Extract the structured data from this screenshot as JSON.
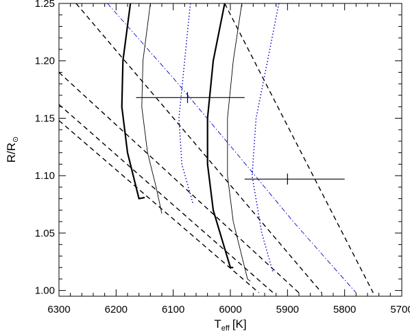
{
  "chart_data": {
    "type": "line",
    "title": "",
    "xlabel": {
      "main": "T",
      "sub": "eff",
      "unit": "[K]"
    },
    "ylabel": {
      "main": "R/R",
      "sub": "⊙"
    },
    "xlim": [
      6300,
      5700
    ],
    "ylim": [
      0.995,
      1.25
    ],
    "x_reversed": true,
    "grid": false,
    "legend": "none",
    "xticks": [
      6300,
      6200,
      6100,
      6000,
      5900,
      5800,
      5700
    ],
    "xtick_labels": [
      "6300",
      "6200",
      "6100",
      "6000",
      "5900",
      "5800",
      "5700"
    ],
    "yticks": [
      1.0,
      1.05,
      1.1,
      1.15,
      1.2,
      1.25
    ],
    "ytick_labels": [
      "1.00",
      "1.05",
      "1.10",
      "1.15",
      "1.20",
      "1.25"
    ],
    "series": [
      {
        "style": "thick-solid",
        "color": "#000000",
        "points": [
          [
            6175,
            1.25
          ],
          [
            6188,
            1.2
          ],
          [
            6190,
            1.16
          ],
          [
            6180,
            1.12
          ],
          [
            6160,
            1.08
          ],
          [
            6150,
            1.081
          ]
        ]
      },
      {
        "style": "thin-solid",
        "color": "#000000",
        "points": [
          [
            6140,
            1.25
          ],
          [
            6153,
            1.2
          ],
          [
            6155,
            1.16
          ],
          [
            6145,
            1.12
          ],
          [
            6130,
            1.09
          ],
          [
            6120,
            1.067
          ]
        ]
      },
      {
        "style": "thick-solid",
        "color": "#000000",
        "points": [
          [
            6010,
            1.25
          ],
          [
            6030,
            1.2
          ],
          [
            6040,
            1.15
          ],
          [
            6040,
            1.11
          ],
          [
            6030,
            1.07
          ],
          [
            6000,
            1.02
          ],
          [
            5995,
            1.02
          ]
        ]
      },
      {
        "style": "thin-solid",
        "color": "#000000",
        "points": [
          [
            5980,
            1.25
          ],
          [
            5995,
            1.2
          ],
          [
            6005,
            1.15
          ],
          [
            6005,
            1.1
          ],
          [
            5995,
            1.06
          ],
          [
            5970,
            1.01
          ],
          [
            5965,
            1.008
          ]
        ]
      },
      {
        "style": "dotted",
        "color": "#0000cc",
        "points": [
          [
            6070,
            1.25
          ],
          [
            6080,
            1.2
          ],
          [
            6090,
            1.15
          ],
          [
            6085,
            1.11
          ],
          [
            6065,
            1.075
          ]
        ]
      },
      {
        "style": "dotted",
        "color": "#0000cc",
        "points": [
          [
            5915,
            1.25
          ],
          [
            5935,
            1.2
          ],
          [
            5955,
            1.15
          ],
          [
            5962,
            1.1
          ],
          [
            5945,
            1.05
          ],
          [
            5925,
            1.015
          ]
        ]
      },
      {
        "style": "dash-dot",
        "color": "#0000cc",
        "points": [
          [
            6215,
            1.25
          ],
          [
            6100,
            1.185
          ],
          [
            5990,
            1.12
          ],
          [
            5890,
            1.06
          ],
          [
            5780,
            0.998
          ]
        ]
      },
      {
        "style": "dashed",
        "color": "#000000",
        "points": [
          [
            6270,
            1.25
          ],
          [
            5840,
            0.998
          ]
        ]
      },
      {
        "style": "dashed",
        "color": "#000000",
        "points": [
          [
            6300,
            1.19
          ],
          [
            5880,
            0.998
          ]
        ]
      },
      {
        "style": "dashed",
        "color": "#000000",
        "points": [
          [
            6300,
            1.162
          ],
          [
            5925,
            0.998
          ]
        ]
      },
      {
        "style": "dashed",
        "color": "#000000",
        "points": [
          [
            6300,
            1.148
          ],
          [
            5950,
            0.998
          ]
        ]
      },
      {
        "style": "dashed",
        "color": "#000000",
        "points": [
          [
            6010,
            1.25
          ],
          [
            5750,
            0.998
          ]
        ]
      }
    ],
    "error_bars": [
      {
        "x": 6075,
        "y": 1.168,
        "xerr": [
          6165,
          5975
        ]
      },
      {
        "x": 5900,
        "y": 1.097,
        "xerr": [
          5975,
          5800
        ]
      }
    ]
  }
}
